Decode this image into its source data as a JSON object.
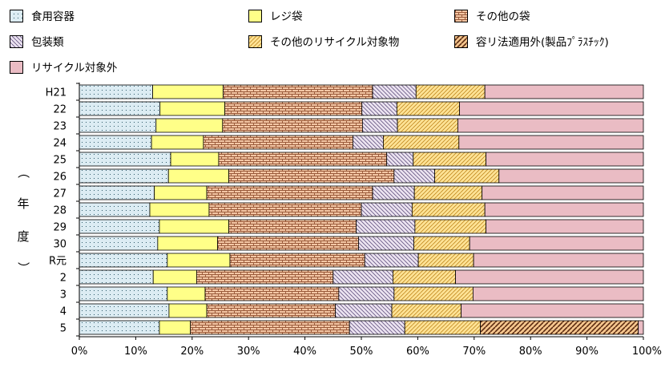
{
  "chart_data": {
    "type": "bar",
    "orientation": "horizontal",
    "stacked": true,
    "percent": true,
    "ylabel": "（年度）",
    "ylabel_chars": [
      "（",
      "年",
      "度",
      "）"
    ],
    "xlim": [
      0,
      100
    ],
    "x_ticks": [
      "0%",
      "10%",
      "20%",
      "30%",
      "40%",
      "50%",
      "60%",
      "70%",
      "80%",
      "90%",
      "100%"
    ],
    "legend_position": "top",
    "grid": false,
    "categories": [
      "H21",
      "22",
      "23",
      "24",
      "25",
      "26",
      "27",
      "28",
      "29",
      "30",
      "R元",
      "2",
      "3",
      "4",
      "5"
    ],
    "series": [
      {
        "name": "食用容器",
        "color": "#dcecf3",
        "pattern": "dots",
        "values": [
          13.0,
          14.3,
          13.6,
          12.8,
          16.2,
          15.8,
          13.3,
          12.5,
          14.2,
          13.9,
          15.6,
          13.1,
          15.6,
          15.9,
          14.2
        ]
      },
      {
        "name": "レジ袋",
        "color": "#ffff88",
        "pattern": "solid",
        "values": [
          12.5,
          11.5,
          11.8,
          9.2,
          8.5,
          10.7,
          9.3,
          10.5,
          12.3,
          10.6,
          11.1,
          7.7,
          6.7,
          6.7,
          5.5
        ]
      },
      {
        "name": "その他の袋",
        "color": "#f0b890",
        "pattern": "brick",
        "values": [
          26.5,
          24.3,
          24.8,
          26.5,
          29.8,
          29.3,
          29.4,
          27.0,
          22.6,
          25.0,
          23.9,
          24.2,
          23.7,
          22.8,
          28.2
        ]
      },
      {
        "name": "包装類",
        "color": "#e6dced",
        "pattern": "backslash",
        "values": [
          7.7,
          6.2,
          6.2,
          5.4,
          4.7,
          7.2,
          7.4,
          9.0,
          10.4,
          9.8,
          9.5,
          10.6,
          9.8,
          10.0,
          9.8
        ]
      },
      {
        "name": "その他のリサイクル対象物",
        "color": "#ffe088",
        "pattern": "slash",
        "values": [
          12.2,
          11.1,
          10.7,
          13.4,
          12.9,
          11.4,
          12.0,
          12.9,
          12.6,
          9.9,
          9.8,
          11.1,
          14.0,
          12.3,
          13.4
        ]
      },
      {
        "name": "容リ法適用外(製品ﾌﾟﾗｽﾁｯｸ)",
        "color": "#f5c68e",
        "pattern": "heavy-slash",
        "values": [
          0,
          0,
          0,
          0,
          0,
          0,
          0,
          0,
          0,
          0,
          0,
          0,
          0,
          0,
          28.0
        ]
      },
      {
        "name": "リサイクル対象外",
        "color": "#eabcc4",
        "pattern": "solid",
        "values": [
          28.1,
          32.6,
          32.9,
          32.7,
          27.9,
          25.6,
          28.6,
          28.1,
          27.9,
          30.8,
          30.1,
          33.3,
          30.2,
          32.3,
          0.9
        ]
      }
    ]
  }
}
